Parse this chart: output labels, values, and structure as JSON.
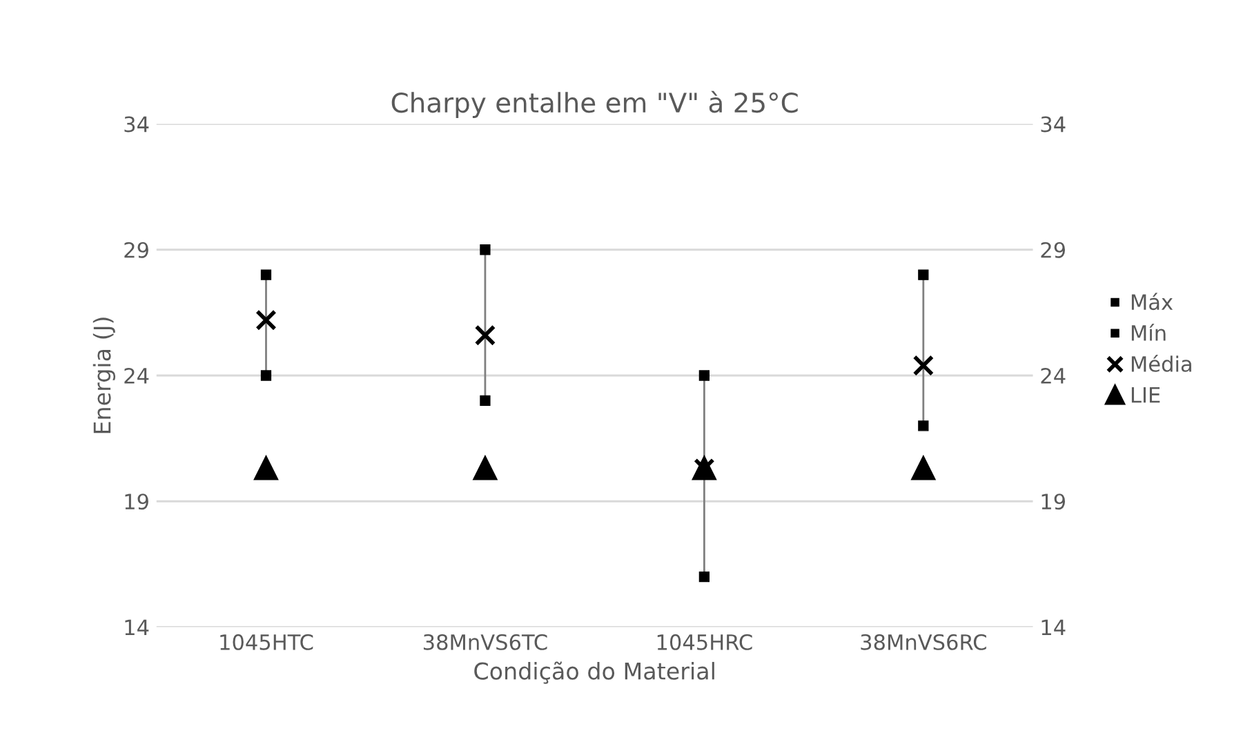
{
  "chart_data": {
    "type": "scatter",
    "title": "Charpy entalhe em \"V\" à 25°C",
    "xlabel": "Condição do Material",
    "ylabel": "Energia (J)",
    "categories": [
      "1045HTC",
      "38MnVS6TC",
      "1045HRC",
      "38MnVS6RC"
    ],
    "series": [
      {
        "name": "Máx",
        "color": "#000000",
        "marker": "square",
        "values": [
          28,
          29,
          24,
          28
        ]
      },
      {
        "name": "Mín",
        "color": "#000000",
        "marker": "square",
        "values": [
          24,
          23,
          16,
          22
        ]
      },
      {
        "name": "Média",
        "color": "#000000",
        "marker": "cross",
        "values": [
          26.2,
          25.6,
          20.3,
          24.4
        ]
      },
      {
        "name": "LIE",
        "color": "#000000",
        "marker": "triangle",
        "values": [
          20.3,
          20.3,
          20.3,
          20.3
        ]
      }
    ],
    "ylim": [
      14,
      34
    ],
    "yticks": [
      14,
      19,
      24,
      29,
      34
    ],
    "y2lim": [
      14,
      34
    ],
    "y2ticks": [
      14,
      19,
      24,
      29,
      34
    ],
    "grid": "y",
    "legend": "right"
  }
}
